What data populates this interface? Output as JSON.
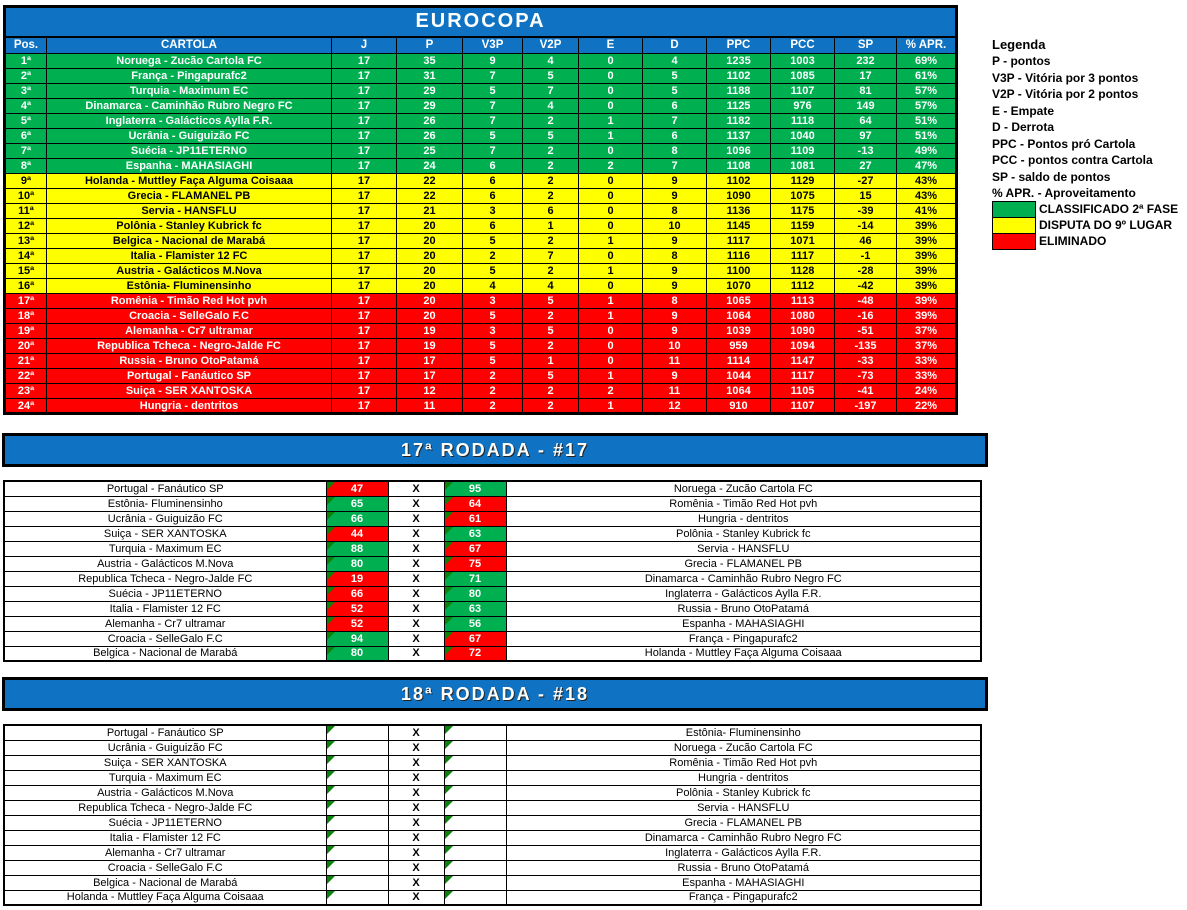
{
  "title": "EUROCOPA",
  "colors": {
    "header_blue": "#0f72c2",
    "zone_green": "#00b050",
    "zone_yellow": "#ffff00",
    "zone_red": "#ff0000",
    "win_green": "#00b050",
    "loss_red": "#ff0000",
    "corner_indicator_green": "#0b830b"
  },
  "standings": {
    "headers": [
      "Pos.",
      "CARTOLA",
      "J",
      "P",
      "V3P",
      "V2P",
      "E",
      "D",
      "PPC",
      "PCC",
      "SP",
      "% APR."
    ],
    "rows": [
      {
        "pos": "1ª",
        "team": "Noruega - Zucão Cartola FC",
        "j": "17",
        "p": "35",
        "v3p": "9",
        "v2p": "4",
        "e": "0",
        "d": "4",
        "ppc": "1235",
        "pcc": "1003",
        "sp": "232",
        "apr": "69%",
        "zone": "green"
      },
      {
        "pos": "2ª",
        "team": "França - Pingapurafc2",
        "j": "17",
        "p": "31",
        "v3p": "7",
        "v2p": "5",
        "e": "0",
        "d": "5",
        "ppc": "1102",
        "pcc": "1085",
        "sp": "17",
        "apr": "61%",
        "zone": "green"
      },
      {
        "pos": "3ª",
        "team": "Turquia - Maximum EC",
        "j": "17",
        "p": "29",
        "v3p": "5",
        "v2p": "7",
        "e": "0",
        "d": "5",
        "ppc": "1188",
        "pcc": "1107",
        "sp": "81",
        "apr": "57%",
        "zone": "green"
      },
      {
        "pos": "4ª",
        "team": "Dinamarca - Caminhão Rubro Negro FC",
        "j": "17",
        "p": "29",
        "v3p": "7",
        "v2p": "4",
        "e": "0",
        "d": "6",
        "ppc": "1125",
        "pcc": "976",
        "sp": "149",
        "apr": "57%",
        "zone": "green"
      },
      {
        "pos": "5ª",
        "team": "Inglaterra - Galácticos Aylla F.R.",
        "j": "17",
        "p": "26",
        "v3p": "7",
        "v2p": "2",
        "e": "1",
        "d": "7",
        "ppc": "1182",
        "pcc": "1118",
        "sp": "64",
        "apr": "51%",
        "zone": "green"
      },
      {
        "pos": "6ª",
        "team": "Ucrânia - Guiguizão FC",
        "j": "17",
        "p": "26",
        "v3p": "5",
        "v2p": "5",
        "e": "1",
        "d": "6",
        "ppc": "1137",
        "pcc": "1040",
        "sp": "97",
        "apr": "51%",
        "zone": "green"
      },
      {
        "pos": "7ª",
        "team": "Suécia - JP11ETERNO",
        "j": "17",
        "p": "25",
        "v3p": "7",
        "v2p": "2",
        "e": "0",
        "d": "8",
        "ppc": "1096",
        "pcc": "1109",
        "sp": "-13",
        "apr": "49%",
        "zone": "green"
      },
      {
        "pos": "8ª",
        "team": "Espanha - MAHASIAGHI",
        "j": "17",
        "p": "24",
        "v3p": "6",
        "v2p": "2",
        "e": "2",
        "d": "7",
        "ppc": "1108",
        "pcc": "1081",
        "sp": "27",
        "apr": "47%",
        "zone": "green"
      },
      {
        "pos": "9ª",
        "team": "Holanda - Muttley Faça Alguma Coisaaa",
        "j": "17",
        "p": "22",
        "v3p": "6",
        "v2p": "2",
        "e": "0",
        "d": "9",
        "ppc": "1102",
        "pcc": "1129",
        "sp": "-27",
        "apr": "43%",
        "zone": "yellow"
      },
      {
        "pos": "10ª",
        "team": "Grecia - FLAMANEL PB",
        "j": "17",
        "p": "22",
        "v3p": "6",
        "v2p": "2",
        "e": "0",
        "d": "9",
        "ppc": "1090",
        "pcc": "1075",
        "sp": "15",
        "apr": "43%",
        "zone": "yellow"
      },
      {
        "pos": "11ª",
        "team": "Servia - HANSFLU",
        "j": "17",
        "p": "21",
        "v3p": "3",
        "v2p": "6",
        "e": "0",
        "d": "8",
        "ppc": "1136",
        "pcc": "1175",
        "sp": "-39",
        "apr": "41%",
        "zone": "yellow"
      },
      {
        "pos": "12ª",
        "team": "Polônia - Stanley Kubrick fc",
        "j": "17",
        "p": "20",
        "v3p": "6",
        "v2p": "1",
        "e": "0",
        "d": "10",
        "ppc": "1145",
        "pcc": "1159",
        "sp": "-14",
        "apr": "39%",
        "zone": "yellow"
      },
      {
        "pos": "13ª",
        "team": "Belgica - Nacional de Marabá",
        "j": "17",
        "p": "20",
        "v3p": "5",
        "v2p": "2",
        "e": "1",
        "d": "9",
        "ppc": "1117",
        "pcc": "1071",
        "sp": "46",
        "apr": "39%",
        "zone": "yellow"
      },
      {
        "pos": "14ª",
        "team": "Italia - Flamister 12 FC",
        "j": "17",
        "p": "20",
        "v3p": "2",
        "v2p": "7",
        "e": "0",
        "d": "8",
        "ppc": "1116",
        "pcc": "1117",
        "sp": "-1",
        "apr": "39%",
        "zone": "yellow"
      },
      {
        "pos": "15ª",
        "team": "Austria - Galácticos M.Nova",
        "j": "17",
        "p": "20",
        "v3p": "5",
        "v2p": "2",
        "e": "1",
        "d": "9",
        "ppc": "1100",
        "pcc": "1128",
        "sp": "-28",
        "apr": "39%",
        "zone": "yellow"
      },
      {
        "pos": "16ª",
        "team": "Estônia- Fluminensinho",
        "j": "17",
        "p": "20",
        "v3p": "4",
        "v2p": "4",
        "e": "0",
        "d": "9",
        "ppc": "1070",
        "pcc": "1112",
        "sp": "-42",
        "apr": "39%",
        "zone": "yellow"
      },
      {
        "pos": "17ª",
        "team": "Romênia - Timão Red Hot pvh",
        "j": "17",
        "p": "20",
        "v3p": "3",
        "v2p": "5",
        "e": "1",
        "d": "8",
        "ppc": "1065",
        "pcc": "1113",
        "sp": "-48",
        "apr": "39%",
        "zone": "red"
      },
      {
        "pos": "18ª",
        "team": "Croacia - SelleGalo F.C",
        "j": "17",
        "p": "20",
        "v3p": "5",
        "v2p": "2",
        "e": "1",
        "d": "9",
        "ppc": "1064",
        "pcc": "1080",
        "sp": "-16",
        "apr": "39%",
        "zone": "red"
      },
      {
        "pos": "19ª",
        "team": "Alemanha - Cr7 ultramar",
        "j": "17",
        "p": "19",
        "v3p": "3",
        "v2p": "5",
        "e": "0",
        "d": "9",
        "ppc": "1039",
        "pcc": "1090",
        "sp": "-51",
        "apr": "37%",
        "zone": "red"
      },
      {
        "pos": "20ª",
        "team": "Republica Tcheca - Negro-Jalde FC",
        "j": "17",
        "p": "19",
        "v3p": "5",
        "v2p": "2",
        "e": "0",
        "d": "10",
        "ppc": "959",
        "pcc": "1094",
        "sp": "-135",
        "apr": "37%",
        "zone": "red"
      },
      {
        "pos": "21ª",
        "team": "Russia - Bruno OtoPatamá",
        "j": "17",
        "p": "17",
        "v3p": "5",
        "v2p": "1",
        "e": "0",
        "d": "11",
        "ppc": "1114",
        "pcc": "1147",
        "sp": "-33",
        "apr": "33%",
        "zone": "red"
      },
      {
        "pos": "22ª",
        "team": "Portugal - Fanáutico SP",
        "j": "17",
        "p": "17",
        "v3p": "2",
        "v2p": "5",
        "e": "1",
        "d": "9",
        "ppc": "1044",
        "pcc": "1117",
        "sp": "-73",
        "apr": "33%",
        "zone": "red"
      },
      {
        "pos": "23ª",
        "team": "Suiça - SER XANTOSKA",
        "j": "17",
        "p": "12",
        "v3p": "2",
        "v2p": "2",
        "e": "2",
        "d": "11",
        "ppc": "1064",
        "pcc": "1105",
        "sp": "-41",
        "apr": "24%",
        "zone": "red"
      },
      {
        "pos": "24ª",
        "team": "Hungria - dentritos",
        "j": "17",
        "p": "11",
        "v3p": "2",
        "v2p": "2",
        "e": "1",
        "d": "12",
        "ppc": "910",
        "pcc": "1107",
        "sp": "-197",
        "apr": "22%",
        "zone": "red"
      }
    ]
  },
  "legend": {
    "title": "Legenda",
    "items": [
      "P - pontos",
      "V3P - Vitória por 3 pontos",
      "V2P - Vitória por 2 pontos",
      "E - Empate",
      "D - Derrota",
      "PPC - Pontos pró Cartola",
      "PCC - pontos contra Cartola",
      "SP - saldo de pontos",
      "% APR. - Aproveitamento"
    ],
    "zones": [
      {
        "color": "#00b050",
        "label": "CLASSIFICADO 2ª FASE"
      },
      {
        "color": "#ffff00",
        "label": "DISPUTA DO 9º LUGAR"
      },
      {
        "color": "#ff0000",
        "label": "ELIMINADO"
      }
    ]
  },
  "labels": {
    "score_separator": "X"
  },
  "rounds": [
    {
      "title": "17ª RODADA - #17",
      "matches": [
        {
          "home": "Portugal - Fanáutico SP",
          "home_score": "47",
          "home_result": "loss",
          "away_score": "95",
          "away_result": "win",
          "away": "Noruega - Zucão Cartola FC"
        },
        {
          "home": "Estônia- Fluminensinho",
          "home_score": "65",
          "home_result": "win",
          "away_score": "64",
          "away_result": "loss",
          "away": "Romênia - Timão Red Hot pvh"
        },
        {
          "home": "Ucrânia - Guiguizão FC",
          "home_score": "66",
          "home_result": "win",
          "away_score": "61",
          "away_result": "loss",
          "away": "Hungria - dentritos"
        },
        {
          "home": "Suiça - SER XANTOSKA",
          "home_score": "44",
          "home_result": "loss",
          "away_score": "63",
          "away_result": "win",
          "away": "Polônia - Stanley Kubrick fc"
        },
        {
          "home": "Turquia - Maximum EC",
          "home_score": "88",
          "home_result": "win",
          "away_score": "67",
          "away_result": "loss",
          "away": "Servia - HANSFLU"
        },
        {
          "home": "Austria - Galácticos M.Nova",
          "home_score": "80",
          "home_result": "win",
          "away_score": "75",
          "away_result": "loss",
          "away": "Grecia - FLAMANEL PB"
        },
        {
          "home": "Republica Tcheca - Negro-Jalde FC",
          "home_score": "19",
          "home_result": "loss",
          "away_score": "71",
          "away_result": "win",
          "away": "Dinamarca - Caminhão Rubro Negro FC"
        },
        {
          "home": "Suécia - JP11ETERNO",
          "home_score": "66",
          "home_result": "loss",
          "away_score": "80",
          "away_result": "win",
          "away": "Inglaterra - Galácticos Aylla F.R."
        },
        {
          "home": "Italia - Flamister 12 FC",
          "home_score": "52",
          "home_result": "loss",
          "away_score": "63",
          "away_result": "win",
          "away": "Russia - Bruno OtoPatamá"
        },
        {
          "home": "Alemanha - Cr7 ultramar",
          "home_score": "52",
          "home_result": "loss",
          "away_score": "56",
          "away_result": "win",
          "away": "Espanha - MAHASIAGHI"
        },
        {
          "home": "Croacia - SelleGalo F.C",
          "home_score": "94",
          "home_result": "win",
          "away_score": "67",
          "away_result": "loss",
          "away": "França - Pingapurafc2"
        },
        {
          "home": "Belgica - Nacional de Marabá",
          "home_score": "80",
          "home_result": "win",
          "away_score": "72",
          "away_result": "loss",
          "away": "Holanda - Muttley Faça Alguma Coisaaa"
        }
      ]
    },
    {
      "title": "18ª RODADA - #18",
      "matches": [
        {
          "home": "Portugal - Fanáutico SP",
          "home_score": "",
          "home_result": "pending",
          "away_score": "",
          "away_result": "pending",
          "away": "Estônia- Fluminensinho"
        },
        {
          "home": "Ucrânia - Guiguizão FC",
          "home_score": "",
          "home_result": "pending",
          "away_score": "",
          "away_result": "pending",
          "away": "Noruega - Zucão Cartola FC"
        },
        {
          "home": "Suiça - SER XANTOSKA",
          "home_score": "",
          "home_result": "pending",
          "away_score": "",
          "away_result": "pending",
          "away": "Romênia - Timão Red Hot pvh"
        },
        {
          "home": "Turquia - Maximum EC",
          "home_score": "",
          "home_result": "pending",
          "away_score": "",
          "away_result": "pending",
          "away": "Hungria - dentritos"
        },
        {
          "home": "Austria - Galácticos M.Nova",
          "home_score": "",
          "home_result": "pending",
          "away_score": "",
          "away_result": "pending",
          "away": "Polônia - Stanley Kubrick fc"
        },
        {
          "home": "Republica Tcheca - Negro-Jalde FC",
          "home_score": "",
          "home_result": "pending",
          "away_score": "",
          "away_result": "pending",
          "away": "Servia - HANSFLU"
        },
        {
          "home": "Suécia - JP11ETERNO",
          "home_score": "",
          "home_result": "pending",
          "away_score": "",
          "away_result": "pending",
          "away": "Grecia - FLAMANEL PB"
        },
        {
          "home": "Italia - Flamister 12 FC",
          "home_score": "",
          "home_result": "pending",
          "away_score": "",
          "away_result": "pending",
          "away": "Dinamarca - Caminhão Rubro Negro FC"
        },
        {
          "home": "Alemanha - Cr7 ultramar",
          "home_score": "",
          "home_result": "pending",
          "away_score": "",
          "away_result": "pending",
          "away": "Inglaterra - Galácticos Aylla F.R."
        },
        {
          "home": "Croacia - SelleGalo F.C",
          "home_score": "",
          "home_result": "pending",
          "away_score": "",
          "away_result": "pending",
          "away": "Russia - Bruno OtoPatamá"
        },
        {
          "home": "Belgica - Nacional de Marabá",
          "home_score": "",
          "home_result": "pending",
          "away_score": "",
          "away_result": "pending",
          "away": "Espanha - MAHASIAGHI"
        },
        {
          "home": "Holanda - Muttley Faça Alguma Coisaaa",
          "home_score": "",
          "home_result": "pending",
          "away_score": "",
          "away_result": "pending",
          "away": "França - Pingapurafc2"
        }
      ]
    }
  ]
}
